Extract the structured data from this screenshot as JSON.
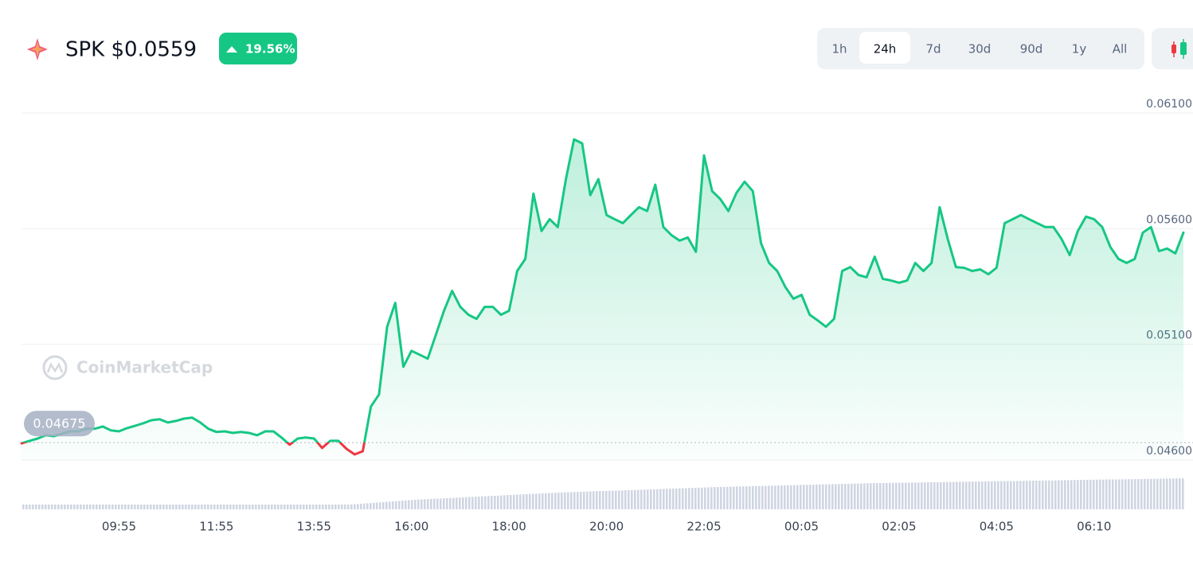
{
  "header": {
    "symbol_price": "SPK $0.0559",
    "change": "19.56%"
  },
  "ranges": [
    "1h",
    "24h",
    "7d",
    "30d",
    "90d",
    "1y",
    "All"
  ],
  "selected_range": "24h",
  "watermark": "CoinMarketCap",
  "chart_data": {
    "type": "line",
    "color": "#16c784",
    "down_color": "#ea3943",
    "baseline": 0.04675,
    "grid": true,
    "ylim": [
      0.046,
      0.061
    ],
    "yticks": [
      {
        "value": 0.046,
        "label": "0.04600"
      },
      {
        "value": 0.051,
        "label": "0.05100"
      },
      {
        "value": 0.056,
        "label": "0.05600"
      },
      {
        "value": 0.061,
        "label": "0.06100"
      }
    ],
    "categories": [
      null,
      null,
      null,
      null,
      null,
      null,
      null,
      null,
      null,
      null,
      null,
      null,
      "09:55",
      null,
      null,
      null,
      null,
      null,
      null,
      null,
      null,
      null,
      null,
      null,
      "11:55",
      null,
      null,
      null,
      null,
      null,
      null,
      null,
      null,
      null,
      null,
      null,
      "13:55",
      null,
      null,
      null,
      null,
      null,
      null,
      null,
      null,
      null,
      null,
      null,
      "16:00",
      null,
      null,
      null,
      null,
      null,
      null,
      null,
      null,
      null,
      null,
      null,
      "18:00",
      null,
      null,
      null,
      null,
      null,
      null,
      null,
      null,
      null,
      null,
      null,
      "20:00",
      null,
      null,
      null,
      null,
      null,
      null,
      null,
      null,
      null,
      null,
      null,
      "22:05",
      null,
      null,
      null,
      null,
      null,
      null,
      null,
      null,
      null,
      null,
      null,
      "00:05",
      null,
      null,
      null,
      null,
      null,
      null,
      null,
      null,
      null,
      null,
      null,
      "02:05",
      null,
      null,
      null,
      null,
      null,
      null,
      null,
      null,
      null,
      null,
      null,
      "04:05",
      null,
      null,
      null,
      null,
      null,
      null,
      null,
      null,
      null,
      null,
      null,
      "06:10",
      null,
      null,
      null,
      null,
      null,
      null,
      null,
      null,
      null,
      null,
      null
    ],
    "values": [
      0.04672,
      0.04683,
      0.04693,
      0.04707,
      0.04703,
      0.04714,
      0.04724,
      0.04724,
      0.04735,
      0.04735,
      0.04745,
      0.04728,
      0.04724,
      0.04738,
      0.04748,
      0.04759,
      0.04772,
      0.04776,
      0.04762,
      0.04769,
      0.04779,
      0.04783,
      0.04762,
      0.04735,
      0.04721,
      0.04724,
      0.04717,
      0.04721,
      0.04717,
      0.04707,
      0.04724,
      0.04724,
      0.04697,
      0.04666,
      0.04693,
      0.04697,
      0.04693,
      0.04652,
      0.04683,
      0.04683,
      0.04648,
      0.04624,
      0.04638,
      0.04831,
      0.04883,
      0.05176,
      0.05279,
      0.05003,
      0.05072,
      0.05055,
      0.05038,
      0.05141,
      0.05245,
      0.05331,
      0.05262,
      0.05228,
      0.0521,
      0.05262,
      0.05262,
      0.05228,
      0.05245,
      0.05417,
      0.05469,
      0.05752,
      0.0559,
      0.05641,
      0.05607,
      0.05814,
      0.05986,
      0.05969,
      0.05745,
      0.05814,
      0.05659,
      0.05641,
      0.05624,
      0.05659,
      0.05693,
      0.05676,
      0.0579,
      0.05607,
      0.05572,
      0.05548,
      0.05562,
      0.055,
      0.05917,
      0.05762,
      0.05728,
      0.05676,
      0.05755,
      0.05803,
      0.05762,
      0.05538,
      0.05452,
      0.05417,
      0.05348,
      0.05297,
      0.05314,
      0.05228,
      0.05203,
      0.05176,
      0.0521,
      0.05417,
      0.05434,
      0.054,
      0.0539,
      0.05479,
      0.05383,
      0.05376,
      0.05366,
      0.05376,
      0.05452,
      0.05417,
      0.05452,
      0.05693,
      0.05555,
      0.05434,
      0.05431,
      0.05417,
      0.05424,
      0.05403,
      0.05431,
      0.05624,
      0.05641,
      0.05659,
      0.05641,
      0.05624,
      0.05607,
      0.05607,
      0.05555,
      0.05486,
      0.0559,
      0.05652,
      0.05641,
      0.05607,
      0.05521,
      0.05469,
      0.05452,
      0.05469,
      0.05583,
      0.05607,
      0.05503,
      0.05514,
      0.05493,
      0.05583
    ]
  }
}
